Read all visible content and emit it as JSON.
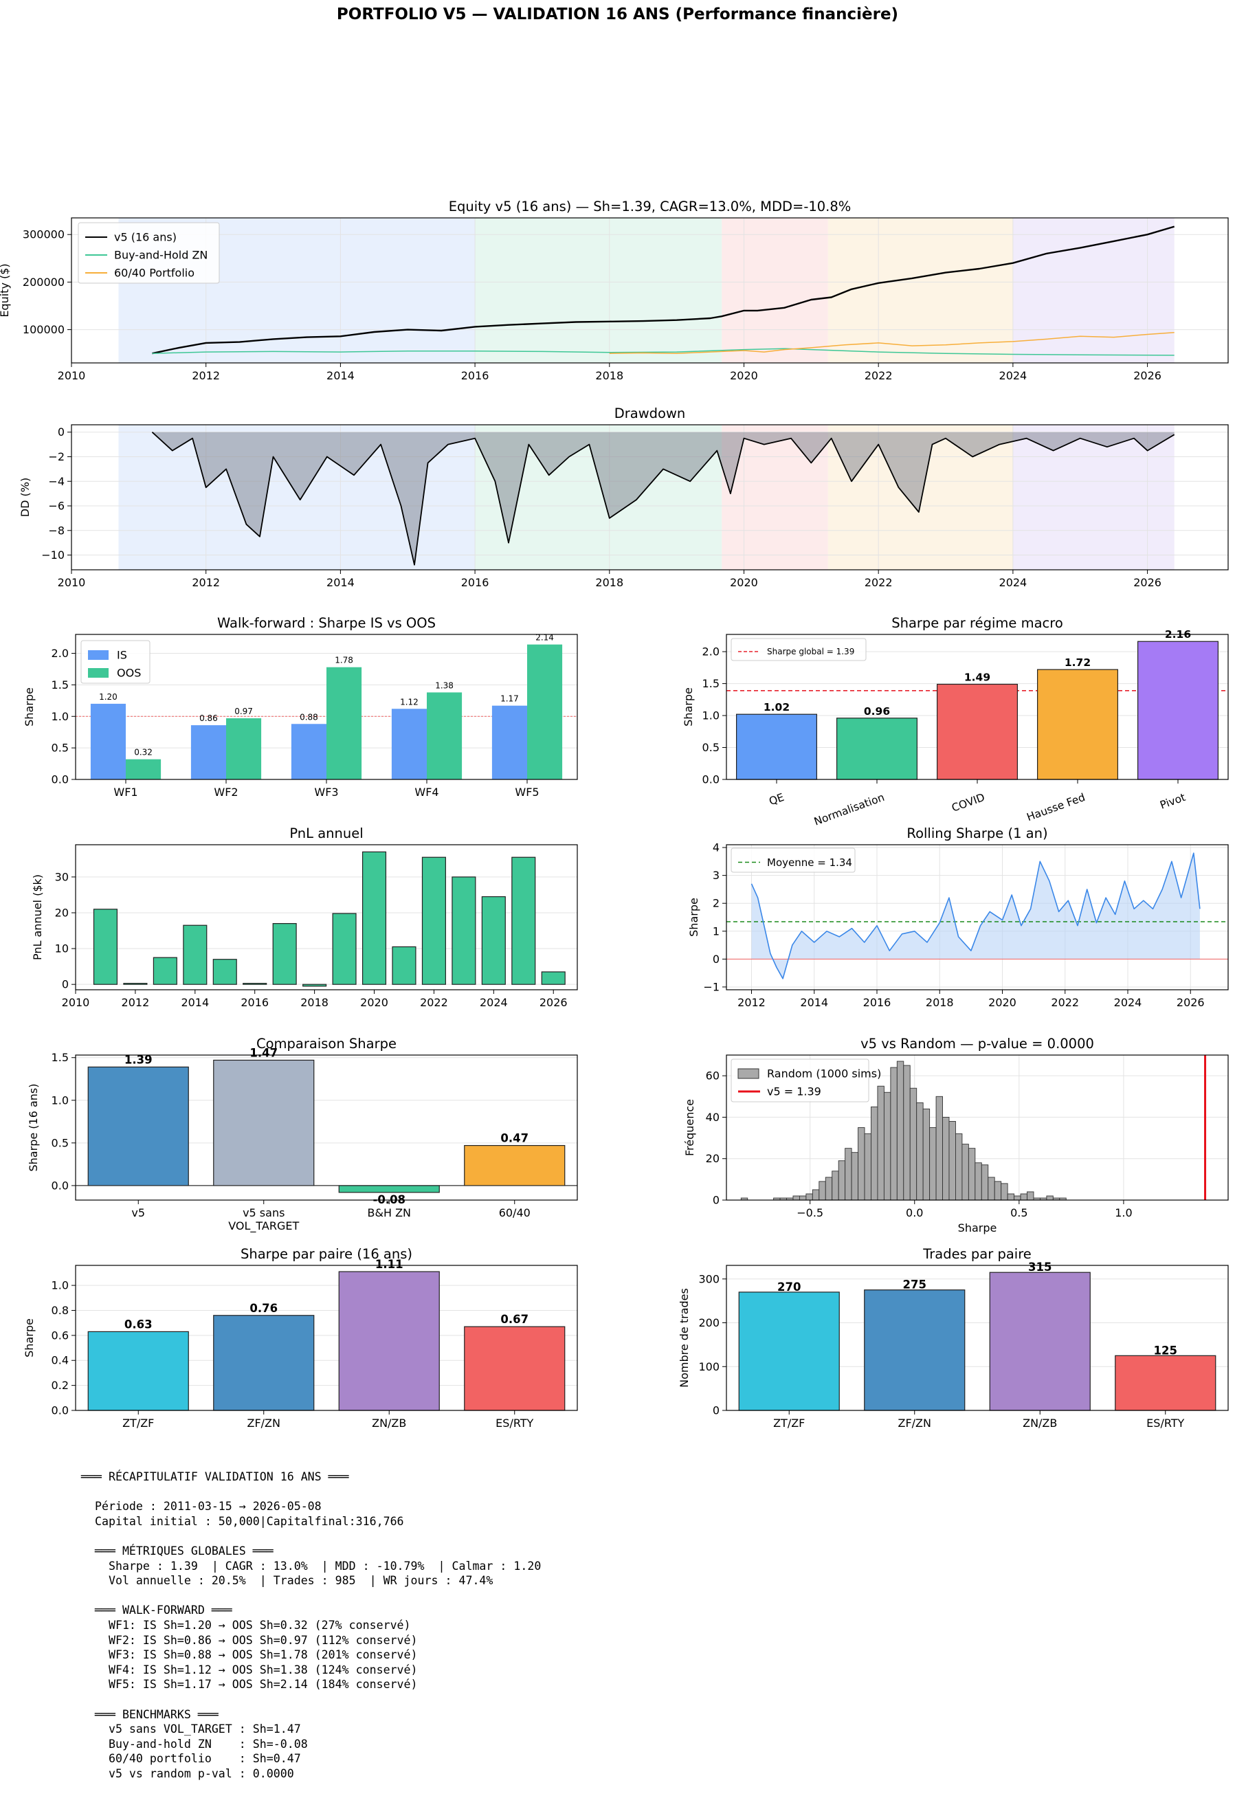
{
  "page": {
    "suptitle": "PORTFOLIO V5 — VALIDATION 16 ANS (Performance financière)"
  },
  "colors": {
    "blue": "#619CF7",
    "green": "#3EC796",
    "red": "#F26363",
    "orange": "#F7AE3A",
    "purple": "#A57BF5",
    "steel": "#4A8FC3",
    "gray": "#A8B4C6",
    "cyan": "#35C3DD",
    "lavender": "#A886CB",
    "line_blue": "#3A87E8",
    "regions": [
      "#D6E4FB",
      "#D4F0E3",
      "#FBDADA",
      "#FCEBCF",
      "#E5DDF8"
    ]
  },
  "chart_data": [
    {
      "id": "equity",
      "type": "line",
      "title": "Equity v5 (16 ans) — Sh=1.39, CAGR=13.0%, MDD=-10.8%",
      "ylabel": "Equity ($)",
      "xlabel": "",
      "xlim": [
        2010,
        2027.2
      ],
      "ylim": [
        30000,
        335000
      ],
      "xticks": [
        "2010",
        "2012",
        "2014",
        "2016",
        "2018",
        "2020",
        "2022",
        "2024",
        "2026"
      ],
      "yticks": [
        "100000",
        "200000",
        "300000"
      ],
      "legend": "top-left",
      "grid": true,
      "regions": [
        [
          2010.7,
          2016.0
        ],
        [
          2016.0,
          2019.67
        ],
        [
          2019.67,
          2021.25
        ],
        [
          2021.25,
          2024.0
        ],
        [
          2024.0,
          2026.4
        ]
      ],
      "series": [
        {
          "name": "v5 (16 ans)",
          "color": "#000000",
          "x": [
            2011.2,
            2011.6,
            2012.0,
            2012.5,
            2013.0,
            2013.5,
            2014.0,
            2014.5,
            2015.0,
            2015.5,
            2016.0,
            2016.5,
            2017.0,
            2017.5,
            2018.0,
            2018.5,
            2019.0,
            2019.5,
            2019.67,
            2020.0,
            2020.2,
            2020.6,
            2021.0,
            2021.3,
            2021.6,
            2022.0,
            2022.5,
            2023.0,
            2023.5,
            2024.0,
            2024.5,
            2025.0,
            2025.5,
            2026.0,
            2026.4
          ],
          "values": [
            50000,
            62000,
            72000,
            74000,
            80000,
            84000,
            86000,
            95000,
            100000,
            98000,
            106000,
            110000,
            113000,
            116000,
            117000,
            118000,
            120000,
            124000,
            128000,
            140000,
            140000,
            146000,
            163000,
            168000,
            185000,
            198000,
            208000,
            220000,
            228000,
            240000,
            260000,
            272000,
            286000,
            300000,
            316766
          ]
        },
        {
          "name": "Buy-and-Hold ZN",
          "color": "#3EC796",
          "x": [
            2011.2,
            2012.0,
            2013.0,
            2014.0,
            2015.0,
            2016.0,
            2017.0,
            2018.0,
            2019.0,
            2020.0,
            2020.6,
            2021.0,
            2022.0,
            2023.0,
            2024.0,
            2025.0,
            2026.4
          ],
          "values": [
            50000,
            53000,
            54000,
            53000,
            55000,
            55000,
            54000,
            52000,
            53000,
            58000,
            60000,
            58000,
            53000,
            50000,
            48000,
            47000,
            46000
          ]
        },
        {
          "name": "60/40 Portfolio",
          "color": "#F7AE3A",
          "x": [
            2018.0,
            2018.5,
            2019.0,
            2019.5,
            2020.0,
            2020.3,
            2020.6,
            2021.0,
            2021.5,
            2022.0,
            2022.5,
            2023.0,
            2023.5,
            2024.0,
            2024.5,
            2025.0,
            2025.5,
            2026.0,
            2026.4
          ],
          "values": [
            50000,
            51000,
            50000,
            53000,
            56000,
            53000,
            58000,
            62000,
            68000,
            72000,
            66000,
            68000,
            72000,
            75000,
            80000,
            86000,
            84000,
            90000,
            94000
          ]
        }
      ]
    },
    {
      "id": "drawdown",
      "type": "area",
      "title": "Drawdown",
      "ylabel": "DD (%)",
      "xlim": [
        2010,
        2027.2
      ],
      "ylim": [
        -11.2,
        0.6
      ],
      "yticks": [
        "0",
        "−2",
        "−4",
        "−6",
        "−8",
        "−10"
      ],
      "grid": true,
      "x": [
        2011.2,
        2011.5,
        2011.8,
        2012.0,
        2012.3,
        2012.6,
        2012.8,
        2013.0,
        2013.4,
        2013.8,
        2014.2,
        2014.6,
        2014.9,
        2015.1,
        2015.3,
        2015.6,
        2016.0,
        2016.3,
        2016.5,
        2016.8,
        2017.1,
        2017.4,
        2017.7,
        2018.0,
        2018.4,
        2018.8,
        2019.2,
        2019.6,
        2019.8,
        2020.0,
        2020.3,
        2020.7,
        2021.0,
        2021.3,
        2021.6,
        2022.0,
        2022.3,
        2022.6,
        2022.8,
        2023.0,
        2023.4,
        2023.8,
        2024.2,
        2024.6,
        2025.0,
        2025.4,
        2025.8,
        2026.0,
        2026.4
      ],
      "values": [
        0,
        -1.5,
        -0.5,
        -4.5,
        -3.0,
        -7.5,
        -8.5,
        -2.0,
        -5.5,
        -2.0,
        -3.5,
        -1.0,
        -6.0,
        -10.8,
        -2.5,
        -1.0,
        -0.5,
        -4.0,
        -9.0,
        -1.0,
        -3.5,
        -2.0,
        -1.0,
        -7.0,
        -5.5,
        -3.0,
        -4.0,
        -1.5,
        -5.0,
        -0.5,
        -1.0,
        -0.5,
        -2.5,
        -0.5,
        -4.0,
        -1.0,
        -4.5,
        -6.5,
        -1.0,
        -0.5,
        -2.0,
        -1.0,
        -0.5,
        -1.5,
        -0.5,
        -1.2,
        -0.5,
        -1.5,
        -0.2
      ]
    },
    {
      "id": "walkforward",
      "type": "bar",
      "title": "Walk-forward : Sharpe IS vs OOS",
      "ylabel": "Sharpe",
      "categories": [
        "WF1",
        "WF2",
        "WF3",
        "WF4",
        "WF5"
      ],
      "ylim": [
        0,
        2.3
      ],
      "yticks": [
        "0.0",
        "0.5",
        "1.0",
        "1.5",
        "2.0"
      ],
      "legend": "top-left",
      "refline": 1.0,
      "series": [
        {
          "name": "IS",
          "values": [
            1.2,
            0.86,
            0.88,
            1.12,
            1.17
          ],
          "labels": [
            "1.20",
            "0.86",
            "0.88",
            "1.12",
            "1.17"
          ]
        },
        {
          "name": "OOS",
          "values": [
            0.32,
            0.97,
            1.78,
            1.38,
            2.14
          ],
          "labels": [
            "0.32",
            "0.97",
            "1.78",
            "1.38",
            "2.14"
          ]
        }
      ]
    },
    {
      "id": "regimes",
      "type": "bar",
      "title": "Sharpe par régime macro",
      "ylabel": "Sharpe",
      "categories": [
        "QE",
        "Normalisation",
        "COVID",
        "Hausse Fed",
        "Pivot"
      ],
      "values": [
        1.02,
        0.96,
        1.49,
        1.72,
        2.16
      ],
      "labels": [
        "1.02",
        "0.96",
        "1.49",
        "1.72",
        "2.16"
      ],
      "ylim": [
        0,
        2.27
      ],
      "yticks": [
        "0.0",
        "0.5",
        "1.0",
        "1.5",
        "2.0"
      ],
      "legend": "top-left",
      "legend_label": "Sharpe global = 1.39",
      "refline": 1.39
    },
    {
      "id": "annual_pnl",
      "type": "bar",
      "title": "PnL annuel",
      "ylabel": "PnL annuel ($k)",
      "xlim": [
        2010,
        2026.8
      ],
      "ylim": [
        -1.5,
        39
      ],
      "xticks": [
        "2010",
        "2012",
        "2014",
        "2016",
        "2018",
        "2020",
        "2022",
        "2024",
        "2026"
      ],
      "yticks": [
        "0",
        "10",
        "20",
        "30"
      ],
      "x": [
        2011,
        2012,
        2013,
        2014,
        2015,
        2016,
        2017,
        2018,
        2019,
        2020,
        2021,
        2022,
        2023,
        2024,
        2025,
        2026
      ],
      "values": [
        21,
        0.3,
        7.5,
        16.5,
        7,
        0.3,
        17,
        -0.5,
        19.8,
        37,
        10.5,
        35.5,
        30,
        24.5,
        35.5,
        3.5
      ]
    },
    {
      "id": "rolling_sharpe",
      "type": "line",
      "title": "Rolling Sharpe (1 an)",
      "ylabel": "Sharpe",
      "xlim": [
        2011.2,
        2027.2
      ],
      "ylim": [
        -1.1,
        4.1
      ],
      "xticks": [
        "2012",
        "2014",
        "2016",
        "2018",
        "2020",
        "2022",
        "2024",
        "2026"
      ],
      "yticks": [
        "−1",
        "0",
        "1",
        "2",
        "3",
        "4"
      ],
      "legend": "top-left",
      "legend_label": "Moyenne = 1.34",
      "mean": 1.34,
      "x": [
        2012.0,
        2012.2,
        2012.4,
        2012.6,
        2012.8,
        2013.0,
        2013.3,
        2013.6,
        2014.0,
        2014.4,
        2014.8,
        2015.2,
        2015.6,
        2016.0,
        2016.4,
        2016.8,
        2017.2,
        2017.6,
        2018.0,
        2018.3,
        2018.6,
        2019.0,
        2019.3,
        2019.6,
        2020.0,
        2020.3,
        2020.6,
        2020.9,
        2021.2,
        2021.5,
        2021.8,
        2022.1,
        2022.4,
        2022.7,
        2023.0,
        2023.3,
        2023.6,
        2023.9,
        2024.2,
        2024.5,
        2024.8,
        2025.1,
        2025.4,
        2025.7,
        2025.9,
        2026.1,
        2026.3
      ],
      "values": [
        2.7,
        2.2,
        1.2,
        0.2,
        -0.3,
        -0.7,
        0.5,
        1.0,
        0.6,
        1.0,
        0.8,
        1.1,
        0.6,
        1.2,
        0.3,
        0.9,
        1.0,
        0.6,
        1.3,
        2.2,
        0.8,
        0.3,
        1.2,
        1.7,
        1.4,
        2.3,
        1.2,
        1.8,
        3.5,
        2.8,
        1.7,
        2.1,
        1.2,
        2.5,
        1.3,
        2.2,
        1.6,
        2.8,
        1.8,
        2.1,
        1.8,
        2.5,
        3.5,
        2.2,
        3.0,
        3.8,
        1.8
      ]
    },
    {
      "id": "sharpe_compare",
      "type": "bar",
      "title": "Comparaison Sharpe",
      "ylabel": "Sharpe (16 ans)",
      "categories": [
        "v5",
        "v5 sans VOL_TARGET",
        "B&H ZN",
        "60/40"
      ],
      "category_lines": [
        [
          "v5"
        ],
        [
          "v5 sans",
          "VOL_TARGET"
        ],
        [
          "B&H ZN"
        ],
        [
          "60/40"
        ]
      ],
      "values": [
        1.39,
        1.47,
        -0.08,
        0.47
      ],
      "labels": [
        "1.39",
        "1.47",
        "-0.08",
        "0.47"
      ],
      "ylim": [
        -0.17,
        1.53
      ],
      "yticks": [
        "0.0",
        "0.5",
        "1.0",
        "1.5"
      ]
    },
    {
      "id": "random_test",
      "type": "bar",
      "title": "v5 vs Random — p-value = 0.0000",
      "xlabel": "Sharpe",
      "ylabel": "Fréquence",
      "xlim": [
        -0.9,
        1.5
      ],
      "ylim": [
        0,
        70
      ],
      "xticks": [
        "−0.5",
        "0.0",
        "0.5",
        "1.0"
      ],
      "yticks": [
        "0",
        "20",
        "40",
        "60"
      ],
      "legend": "top-left",
      "series": [
        {
          "name": "Random (1000 sims)"
        },
        {
          "name": "v5 = 1.39",
          "value": 1.39
        }
      ],
      "bin_start": -0.83,
      "bin_width": 0.0311,
      "values": [
        1,
        0,
        0,
        0,
        0,
        1,
        1,
        1,
        2,
        2,
        3,
        5,
        9,
        11,
        14,
        19,
        25,
        23,
        35,
        32,
        45,
        55,
        52,
        64,
        67,
        65,
        54,
        47,
        44,
        35,
        50,
        40,
        38,
        32,
        27,
        25,
        18,
        17,
        11,
        9,
        8,
        3,
        2,
        3,
        4,
        1,
        1,
        2,
        1,
        1
      ]
    },
    {
      "id": "pair_sharpe",
      "type": "bar",
      "title": "Sharpe par paire (16 ans)",
      "ylabel": "Sharpe",
      "categories": [
        "ZT/ZF",
        "ZF/ZN",
        "ZN/ZB",
        "ES/RTY"
      ],
      "values": [
        0.63,
        0.76,
        1.11,
        0.67
      ],
      "labels": [
        "0.63",
        "0.76",
        "1.11",
        "0.67"
      ],
      "ylim": [
        0,
        1.16
      ],
      "yticks": [
        "0.0",
        "0.2",
        "0.4",
        "0.6",
        "0.8",
        "1.0"
      ]
    },
    {
      "id": "pair_trades",
      "type": "bar",
      "title": "Trades par paire",
      "ylabel": "Nombre de trades",
      "categories": [
        "ZT/ZF",
        "ZF/ZN",
        "ZN/ZB",
        "ES/RTY"
      ],
      "values": [
        270,
        275,
        315,
        125
      ],
      "labels": [
        "270",
        "275",
        "315",
        "125"
      ],
      "ylim": [
        0,
        331
      ],
      "yticks": [
        "0",
        "100",
        "200",
        "300"
      ]
    }
  ],
  "summary": {
    "lines": [
      "═══ RÉCAPITULATIF VALIDATION 16 ANS ═══",
      "",
      "  Période : 2011-03-15 → 2026-05-08",
      "  Capital initial : 50,000|Capitalfinal:316,766",
      "",
      "  ═══ MÉTRIQUES GLOBALES ═══",
      "    Sharpe : 1.39  | CAGR : 13.0%  | MDD : -10.79%  | Calmar : 1.20",
      "    Vol annuelle : 20.5%  | Trades : 985  | WR jours : 47.4%",
      "",
      "  ═══ WALK-FORWARD ═══",
      "    WF1: IS Sh=1.20 → OOS Sh=0.32 (27% conservé)",
      "    WF2: IS Sh=0.86 → OOS Sh=0.97 (112% conservé)",
      "    WF3: IS Sh=0.88 → OOS Sh=1.78 (201% conservé)",
      "    WF4: IS Sh=1.12 → OOS Sh=1.38 (124% conservé)",
      "    WF5: IS Sh=1.17 → OOS Sh=2.14 (184% conservé)",
      "",
      "  ═══ BENCHMARKS ═══",
      "    v5 sans VOL_TARGET : Sh=1.47",
      "    Buy-and-hold ZN    : Sh=-0.08",
      "    60/40 portfolio    : Sh=0.47",
      "    v5 vs random p-val : 0.0000"
    ]
  }
}
